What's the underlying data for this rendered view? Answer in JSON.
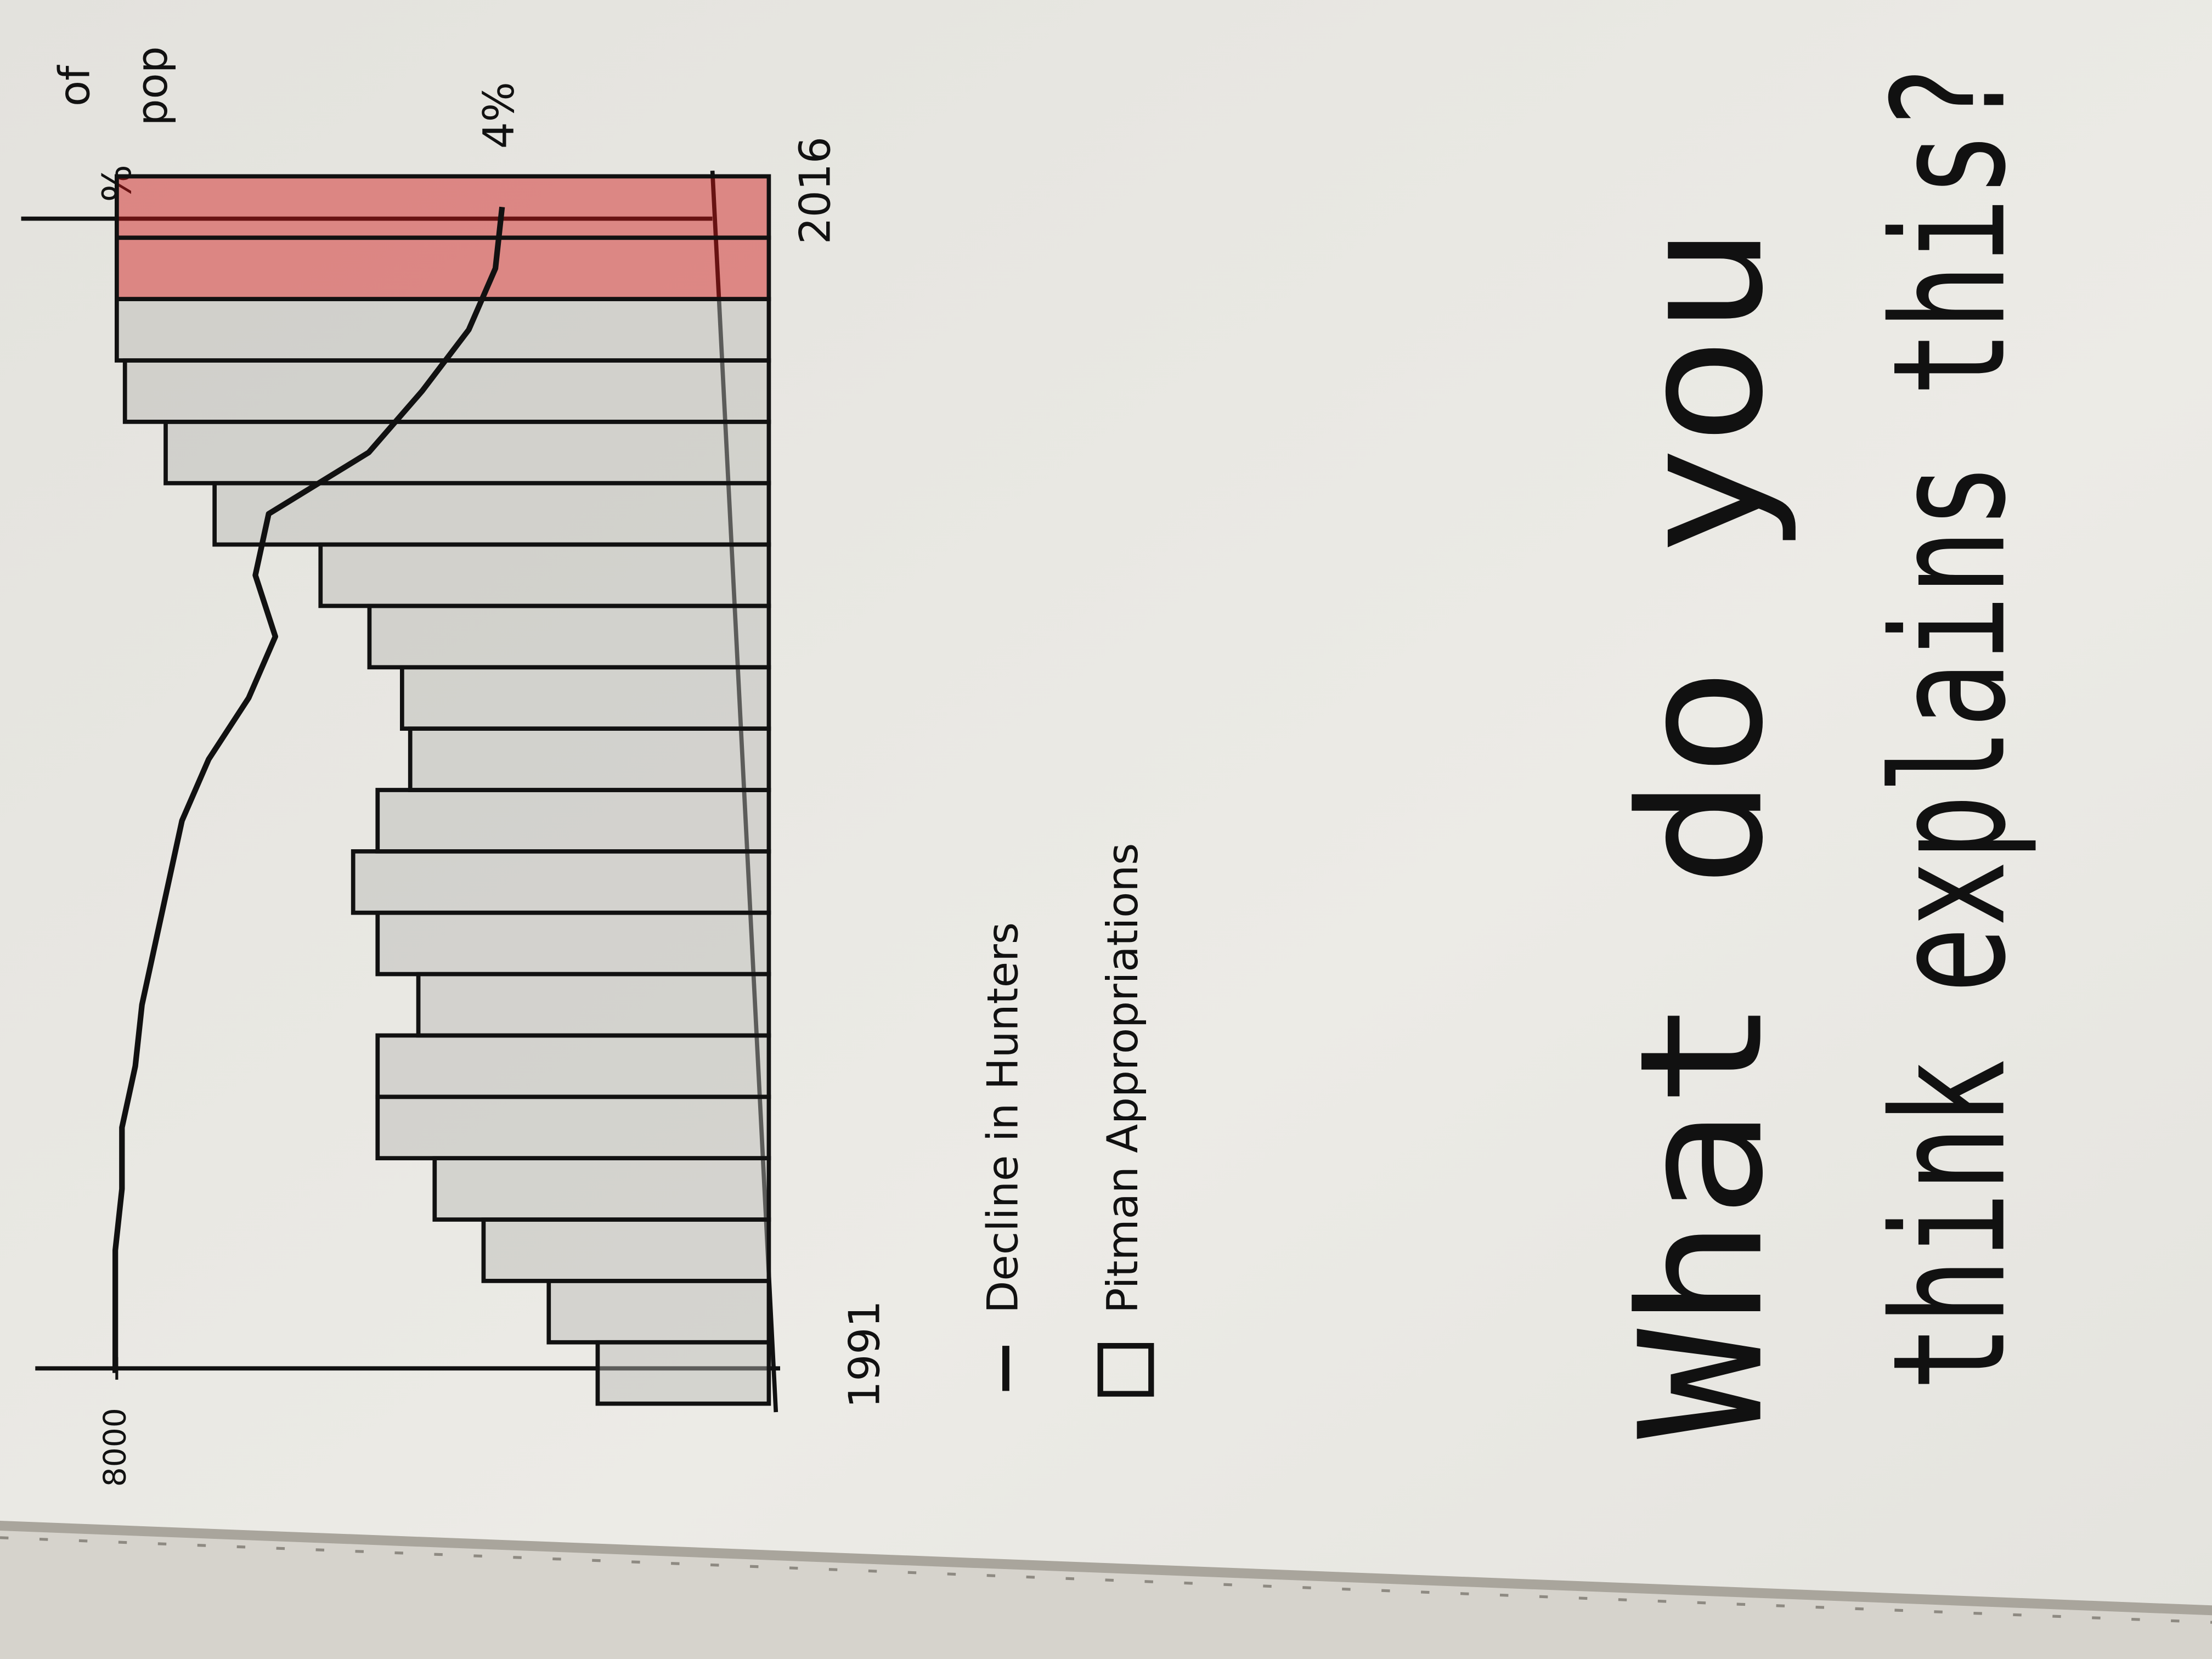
{
  "chart_data": {
    "type": "bar",
    "categories": [
      "1991",
      null,
      null,
      null,
      null,
      null,
      null,
      null,
      null,
      null,
      null,
      null,
      null,
      null,
      null,
      null,
      null,
      null,
      null,
      "2016"
    ],
    "series": [
      {
        "name": "Pitman Appropriations",
        "type": "bar",
        "color": "#b8b8b4",
        "colors": [
          "#b8b8b4",
          "#b8b8b4",
          "#b8b8b4",
          "#b8b8b4",
          "#b8b8b4",
          "#b8b8b4",
          "#b8b8b4",
          "#b8b8b4",
          "#b8b8b4",
          "#b8b8b4",
          "#b8b8b4",
          "#b8b8b4",
          "#b8b8b4",
          "#b8b8b4",
          "#b8b8b4",
          "#b8b8b4",
          "#b8b8b4",
          "#b8b8b4",
          "#d01515",
          "#d01515"
        ],
        "values": [
          2100,
          2700,
          3500,
          4100,
          4800,
          4800,
          4300,
          4800,
          5100,
          4800,
          4400,
          4500,
          4900,
          5500,
          6800,
          7400,
          7900,
          8000,
          8000,
          8000
        ]
      },
      {
        "name": "Decline in Hunters",
        "type": "line",
        "color": "#111111",
        "axis": "y2",
        "values": [
          9.8,
          9.8,
          9.8,
          9.7,
          9.7,
          9.5,
          9.4,
          9.2,
          9.0,
          8.8,
          8.4,
          7.8,
          7.4,
          7.7,
          7.5,
          6.0,
          5.2,
          4.5,
          4.1,
          4.0
        ],
        "value_labels": [
          null,
          null,
          null,
          null,
          null,
          null,
          null,
          null,
          null,
          null,
          null,
          null,
          null,
          null,
          null,
          null,
          null,
          null,
          null,
          "4%"
        ]
      }
    ],
    "ylim": [
      0,
      9000
    ],
    "yticks": [
      8000
    ],
    "y2lim": [
      0,
      11
    ],
    "y2label": "%",
    "y2label_note": [
      "of",
      "pop"
    ],
    "legend": "bottom-left"
  },
  "caption": [
    "What do you",
    "think explains this?"
  ]
}
